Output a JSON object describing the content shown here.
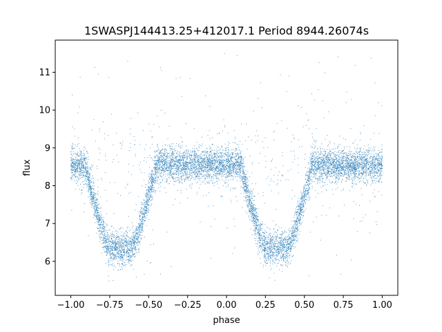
{
  "chart_data": {
    "type": "scatter",
    "title": "1SWASPJ144413.25+412017.1 Period 8944.26074s",
    "xlabel": "phase",
    "ylabel": "flux",
    "xlim": [
      -1.1,
      1.1
    ],
    "ylim": [
      5.1,
      11.85
    ],
    "xticks": [
      -1.0,
      -0.75,
      -0.5,
      -0.25,
      0.0,
      0.25,
      0.5,
      0.75,
      1.0
    ],
    "xtick_labels": [
      "−1.00",
      "−0.75",
      "−0.50",
      "−0.25",
      "0.00",
      "0.25",
      "0.50",
      "0.75",
      "1.00"
    ],
    "yticks": [
      6,
      7,
      8,
      9,
      10,
      11
    ],
    "ytick_labels": [
      "6",
      "7",
      "8",
      "9",
      "10",
      "11"
    ],
    "grid": false,
    "point_color": "#1f77b4",
    "light_curve": {
      "baseline_flux": 8.55,
      "minimum_flux": 6.35,
      "eclipse_centers": [
        -0.68,
        0.32
      ],
      "eclipse_half_width": 0.23,
      "flat_bottom_half_width": 0.07,
      "scatter": 0.22
    }
  }
}
